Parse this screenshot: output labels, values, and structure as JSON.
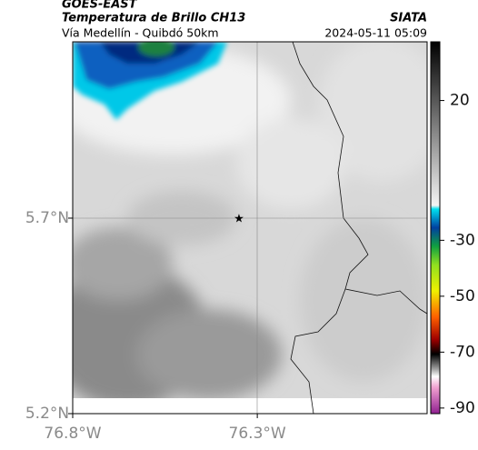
{
  "header": {
    "title": "GOES-EAST",
    "subtitle": "Temperatura de Brillo CH13",
    "source": "SIATA",
    "route": "Vía Medellín - Quibdó 50km",
    "timestamp": "2024-05-11 05:09"
  },
  "map": {
    "xlim": [
      -76.8,
      -75.84
    ],
    "ylim": [
      5.2,
      6.151
    ],
    "xticks": [
      {
        "value": -76.8,
        "label": "76.8°W"
      },
      {
        "value": -76.3,
        "label": "76.3°W"
      }
    ],
    "yticks": [
      {
        "value": 5.2,
        "label": "5.2°N"
      },
      {
        "value": 5.7,
        "label": "5.7°N"
      }
    ]
  },
  "colorbar": {
    "clim": [
      -92,
      41
    ],
    "ticks": [
      20,
      -30,
      -50,
      -70,
      -90
    ]
  }
}
